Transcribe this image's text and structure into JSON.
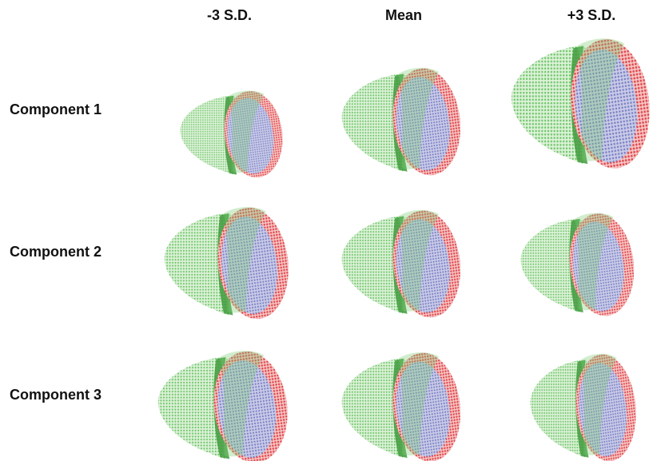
{
  "columns": [
    "-3 S.D.",
    "Mean",
    "+3 S.D."
  ],
  "rows": [
    "Component 1",
    "Component 2",
    "Component 3"
  ]
}
